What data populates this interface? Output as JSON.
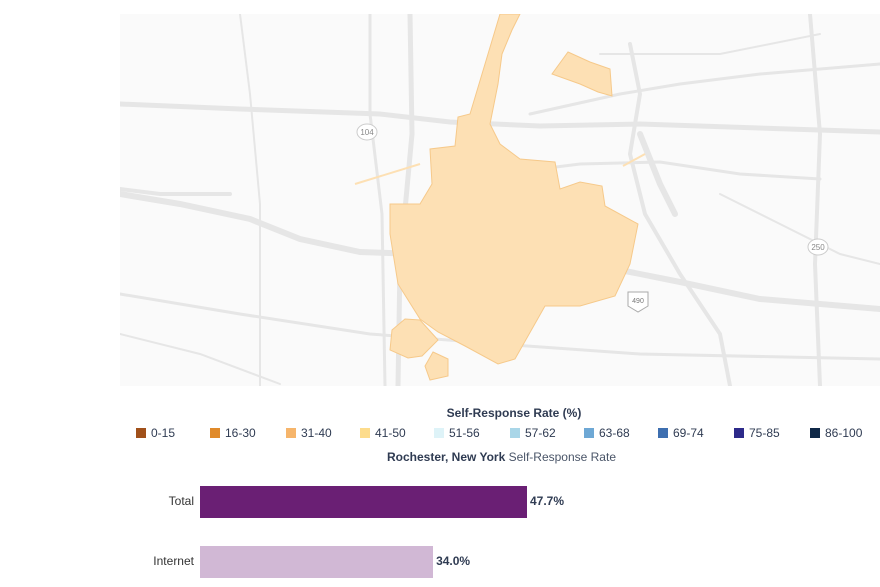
{
  "map": {
    "road_labels": [
      {
        "name": "104-shield-icon",
        "text": "104"
      },
      {
        "name": "250-shield-icon",
        "text": "250"
      },
      {
        "name": "490-shield-icon",
        "text": "490"
      }
    ],
    "fill_color": "#fde0b4",
    "outline_color": "#f6c98a"
  },
  "legend": {
    "title": "Self-Response Rate (%)",
    "items": [
      {
        "label": "0-15",
        "color": "#a0501a"
      },
      {
        "label": "16-30",
        "color": "#e08a2a"
      },
      {
        "label": "31-40",
        "color": "#f6b56b"
      },
      {
        "label": "41-50",
        "color": "#fddc8c"
      },
      {
        "label": "51-56",
        "color": "#def3f8"
      },
      {
        "label": "57-62",
        "color": "#a9d6e8"
      },
      {
        "label": "63-68",
        "color": "#6ea8d5"
      },
      {
        "label": "69-74",
        "color": "#3e6fb0"
      },
      {
        "label": "75-85",
        "color": "#2d2a8a"
      },
      {
        "label": "86-100",
        "color": "#0f2847"
      }
    ]
  },
  "subtitle": {
    "place": "Rochester, New York",
    "suffix": " Self-Response Rate"
  },
  "chart_data": {
    "type": "bar",
    "categories": [
      "Total",
      "Internet"
    ],
    "values": [
      47.7,
      34.0
    ],
    "value_labels": [
      "47.7%",
      "34.0%"
    ],
    "colors": [
      "#6a1f74",
      "#d1b8d5"
    ],
    "xlim": [
      0,
      100
    ]
  }
}
